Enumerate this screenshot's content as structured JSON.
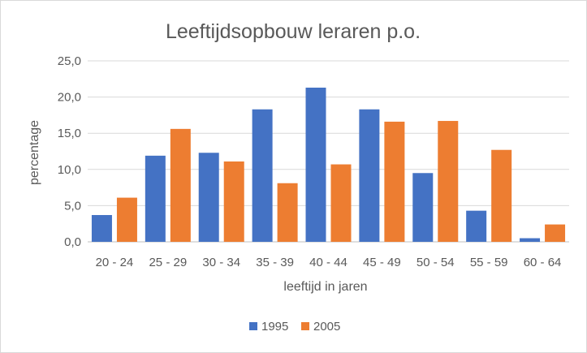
{
  "chart_data": {
    "type": "bar",
    "title": "Leeftijdsopbouw leraren p.o.",
    "xlabel": "leeftijd in jaren",
    "ylabel": "percentage",
    "categories": [
      "20 - 24",
      "25 - 29",
      "30 - 34",
      "35 - 39",
      "40 - 44",
      "45 - 49",
      "50 - 54",
      "55 - 59",
      "60 - 64"
    ],
    "series": [
      {
        "name": "1995",
        "color": "#4472c4",
        "values": [
          3.7,
          11.9,
          12.3,
          18.3,
          21.3,
          18.3,
          9.5,
          4.3,
          0.5
        ]
      },
      {
        "name": "2005",
        "color": "#ed7d31",
        "values": [
          6.1,
          15.6,
          11.1,
          8.1,
          10.7,
          16.6,
          16.7,
          12.7,
          2.4
        ]
      }
    ],
    "ylim": [
      0,
      25
    ],
    "yticks": [
      "0,0",
      "5,0",
      "10,0",
      "15,0",
      "20,0",
      "25,0"
    ],
    "grid": true,
    "legend_position": "bottom"
  }
}
